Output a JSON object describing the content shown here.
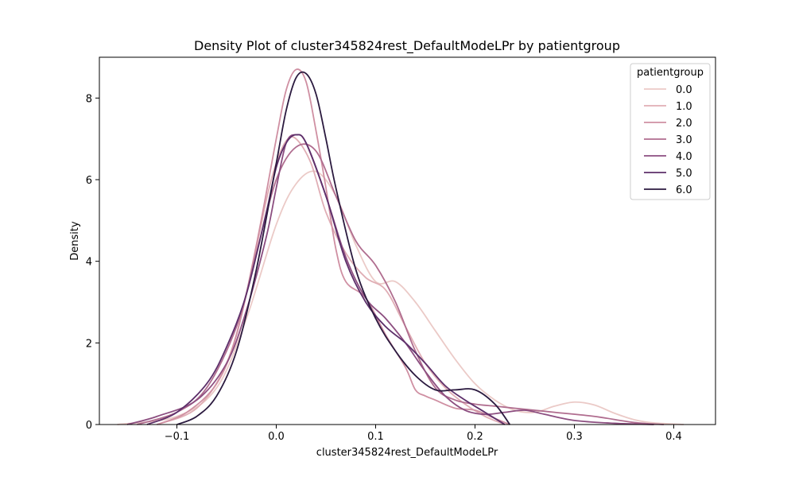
{
  "chart_data": {
    "type": "line",
    "title": "Density Plot of cluster345824rest_DefaultModeLPr by patientgroup",
    "xlabel": "cluster345824rest_DefaultModeLPr",
    "ylabel": "Density",
    "xlim": [
      -0.178,
      0.442
    ],
    "ylim": [
      0,
      9.0
    ],
    "xticks": [
      -0.1,
      0.0,
      0.1,
      0.2,
      0.3,
      0.4
    ],
    "xtick_labels": [
      "−0.1",
      "0.0",
      "0.1",
      "0.2",
      "0.3",
      "0.4"
    ],
    "yticks": [
      0,
      2,
      4,
      6,
      8
    ],
    "ytick_labels": [
      "0",
      "2",
      "4",
      "6",
      "8"
    ],
    "grid": false,
    "legend": {
      "title": "patientgroup",
      "placement": "top-right"
    },
    "series": [
      {
        "name": "0.0",
        "color": "#ebcac7",
        "x": [
          -0.16,
          -0.1,
          -0.06,
          -0.03,
          0.0,
          0.02,
          0.04,
          0.06,
          0.08,
          0.1,
          0.12,
          0.14,
          0.16,
          0.18,
          0.2,
          0.22,
          0.24,
          0.26,
          0.28,
          0.3,
          0.32,
          0.34,
          0.36,
          0.38,
          0.41
        ],
        "y": [
          0.0,
          0.2,
          0.9,
          2.6,
          4.9,
          5.9,
          6.2,
          5.6,
          4.4,
          3.5,
          3.5,
          3.0,
          2.3,
          1.6,
          1.0,
          0.6,
          0.35,
          0.3,
          0.45,
          0.55,
          0.48,
          0.28,
          0.12,
          0.04,
          0.0
        ]
      },
      {
        "name": "1.0",
        "color": "#e0aeb5",
        "x": [
          -0.12,
          -0.08,
          -0.05,
          -0.03,
          -0.01,
          0.0,
          0.01,
          0.02,
          0.035,
          0.05,
          0.07,
          0.09,
          0.11,
          0.13,
          0.15,
          0.17,
          0.19,
          0.21,
          0.23
        ],
        "y": [
          0.0,
          0.4,
          1.5,
          3.2,
          5.5,
          6.4,
          6.95,
          7.0,
          6.4,
          5.2,
          4.2,
          3.6,
          3.3,
          2.4,
          1.5,
          0.9,
          0.5,
          0.2,
          0.0
        ]
      },
      {
        "name": "2.0",
        "color": "#cf8fa2",
        "x": [
          -0.12,
          -0.09,
          -0.06,
          -0.04,
          -0.02,
          0.0,
          0.01,
          0.02,
          0.03,
          0.04,
          0.05,
          0.06,
          0.07,
          0.09,
          0.11,
          0.13,
          0.14,
          0.15,
          0.16,
          0.18,
          0.2,
          0.22,
          0.235
        ],
        "y": [
          0.0,
          0.3,
          1.0,
          2.2,
          4.4,
          7.0,
          8.2,
          8.7,
          8.4,
          7.2,
          5.8,
          4.3,
          3.5,
          3.1,
          2.2,
          1.4,
          0.85,
          0.7,
          0.6,
          0.4,
          0.35,
          0.15,
          0.0
        ]
      },
      {
        "name": "3.0",
        "color": "#b06d8f",
        "x": [
          -0.14,
          -0.1,
          -0.07,
          -0.04,
          -0.02,
          0.0,
          0.02,
          0.04,
          0.06,
          0.08,
          0.1,
          0.12,
          0.14,
          0.16,
          0.18,
          0.2,
          0.22,
          0.24,
          0.28,
          0.32,
          0.36,
          0.39
        ],
        "y": [
          0.0,
          0.3,
          0.9,
          2.4,
          4.2,
          6.0,
          6.8,
          6.7,
          5.6,
          4.5,
          3.9,
          3.0,
          1.8,
          0.9,
          0.6,
          0.5,
          0.45,
          0.4,
          0.3,
          0.2,
          0.05,
          0.0
        ]
      },
      {
        "name": "4.0",
        "color": "#8c4e80",
        "x": [
          -0.15,
          -0.12,
          -0.08,
          -0.05,
          -0.03,
          -0.01,
          0.0,
          0.01,
          0.02,
          0.03,
          0.05,
          0.07,
          0.09,
          0.11,
          0.13,
          0.15,
          0.17,
          0.19,
          0.21,
          0.23,
          0.25,
          0.27,
          0.3,
          0.34,
          0.38
        ],
        "y": [
          0.0,
          0.2,
          0.6,
          1.5,
          2.8,
          4.6,
          5.8,
          6.9,
          7.1,
          6.9,
          5.6,
          4.1,
          3.1,
          2.6,
          2.0,
          1.3,
          0.7,
          0.35,
          0.25,
          0.3,
          0.35,
          0.25,
          0.1,
          0.03,
          0.0
        ]
      },
      {
        "name": "5.0",
        "color": "#5d2f6a",
        "x": [
          -0.13,
          -0.1,
          -0.07,
          -0.05,
          -0.03,
          -0.01,
          0.0,
          0.01,
          0.02,
          0.03,
          0.05,
          0.07,
          0.09,
          0.11,
          0.13,
          0.15,
          0.17,
          0.19,
          0.21,
          0.23
        ],
        "y": [
          0.0,
          0.3,
          1.0,
          1.9,
          3.2,
          5.2,
          6.3,
          6.9,
          7.1,
          6.9,
          5.6,
          4.0,
          3.0,
          2.4,
          2.0,
          1.5,
          0.95,
          0.6,
          0.3,
          0.0
        ]
      },
      {
        "name": "6.0",
        "color": "#2b1a3f",
        "x": [
          -0.1,
          -0.08,
          -0.06,
          -0.04,
          -0.02,
          0.0,
          0.01,
          0.02,
          0.03,
          0.04,
          0.05,
          0.06,
          0.08,
          0.1,
          0.12,
          0.14,
          0.16,
          0.18,
          0.2,
          0.22,
          0.235
        ],
        "y": [
          0.0,
          0.2,
          0.7,
          1.8,
          3.8,
          6.4,
          7.7,
          8.5,
          8.6,
          8.1,
          7.0,
          5.8,
          3.8,
          2.6,
          1.8,
          1.2,
          0.85,
          0.85,
          0.85,
          0.5,
          0.0
        ]
      }
    ]
  }
}
